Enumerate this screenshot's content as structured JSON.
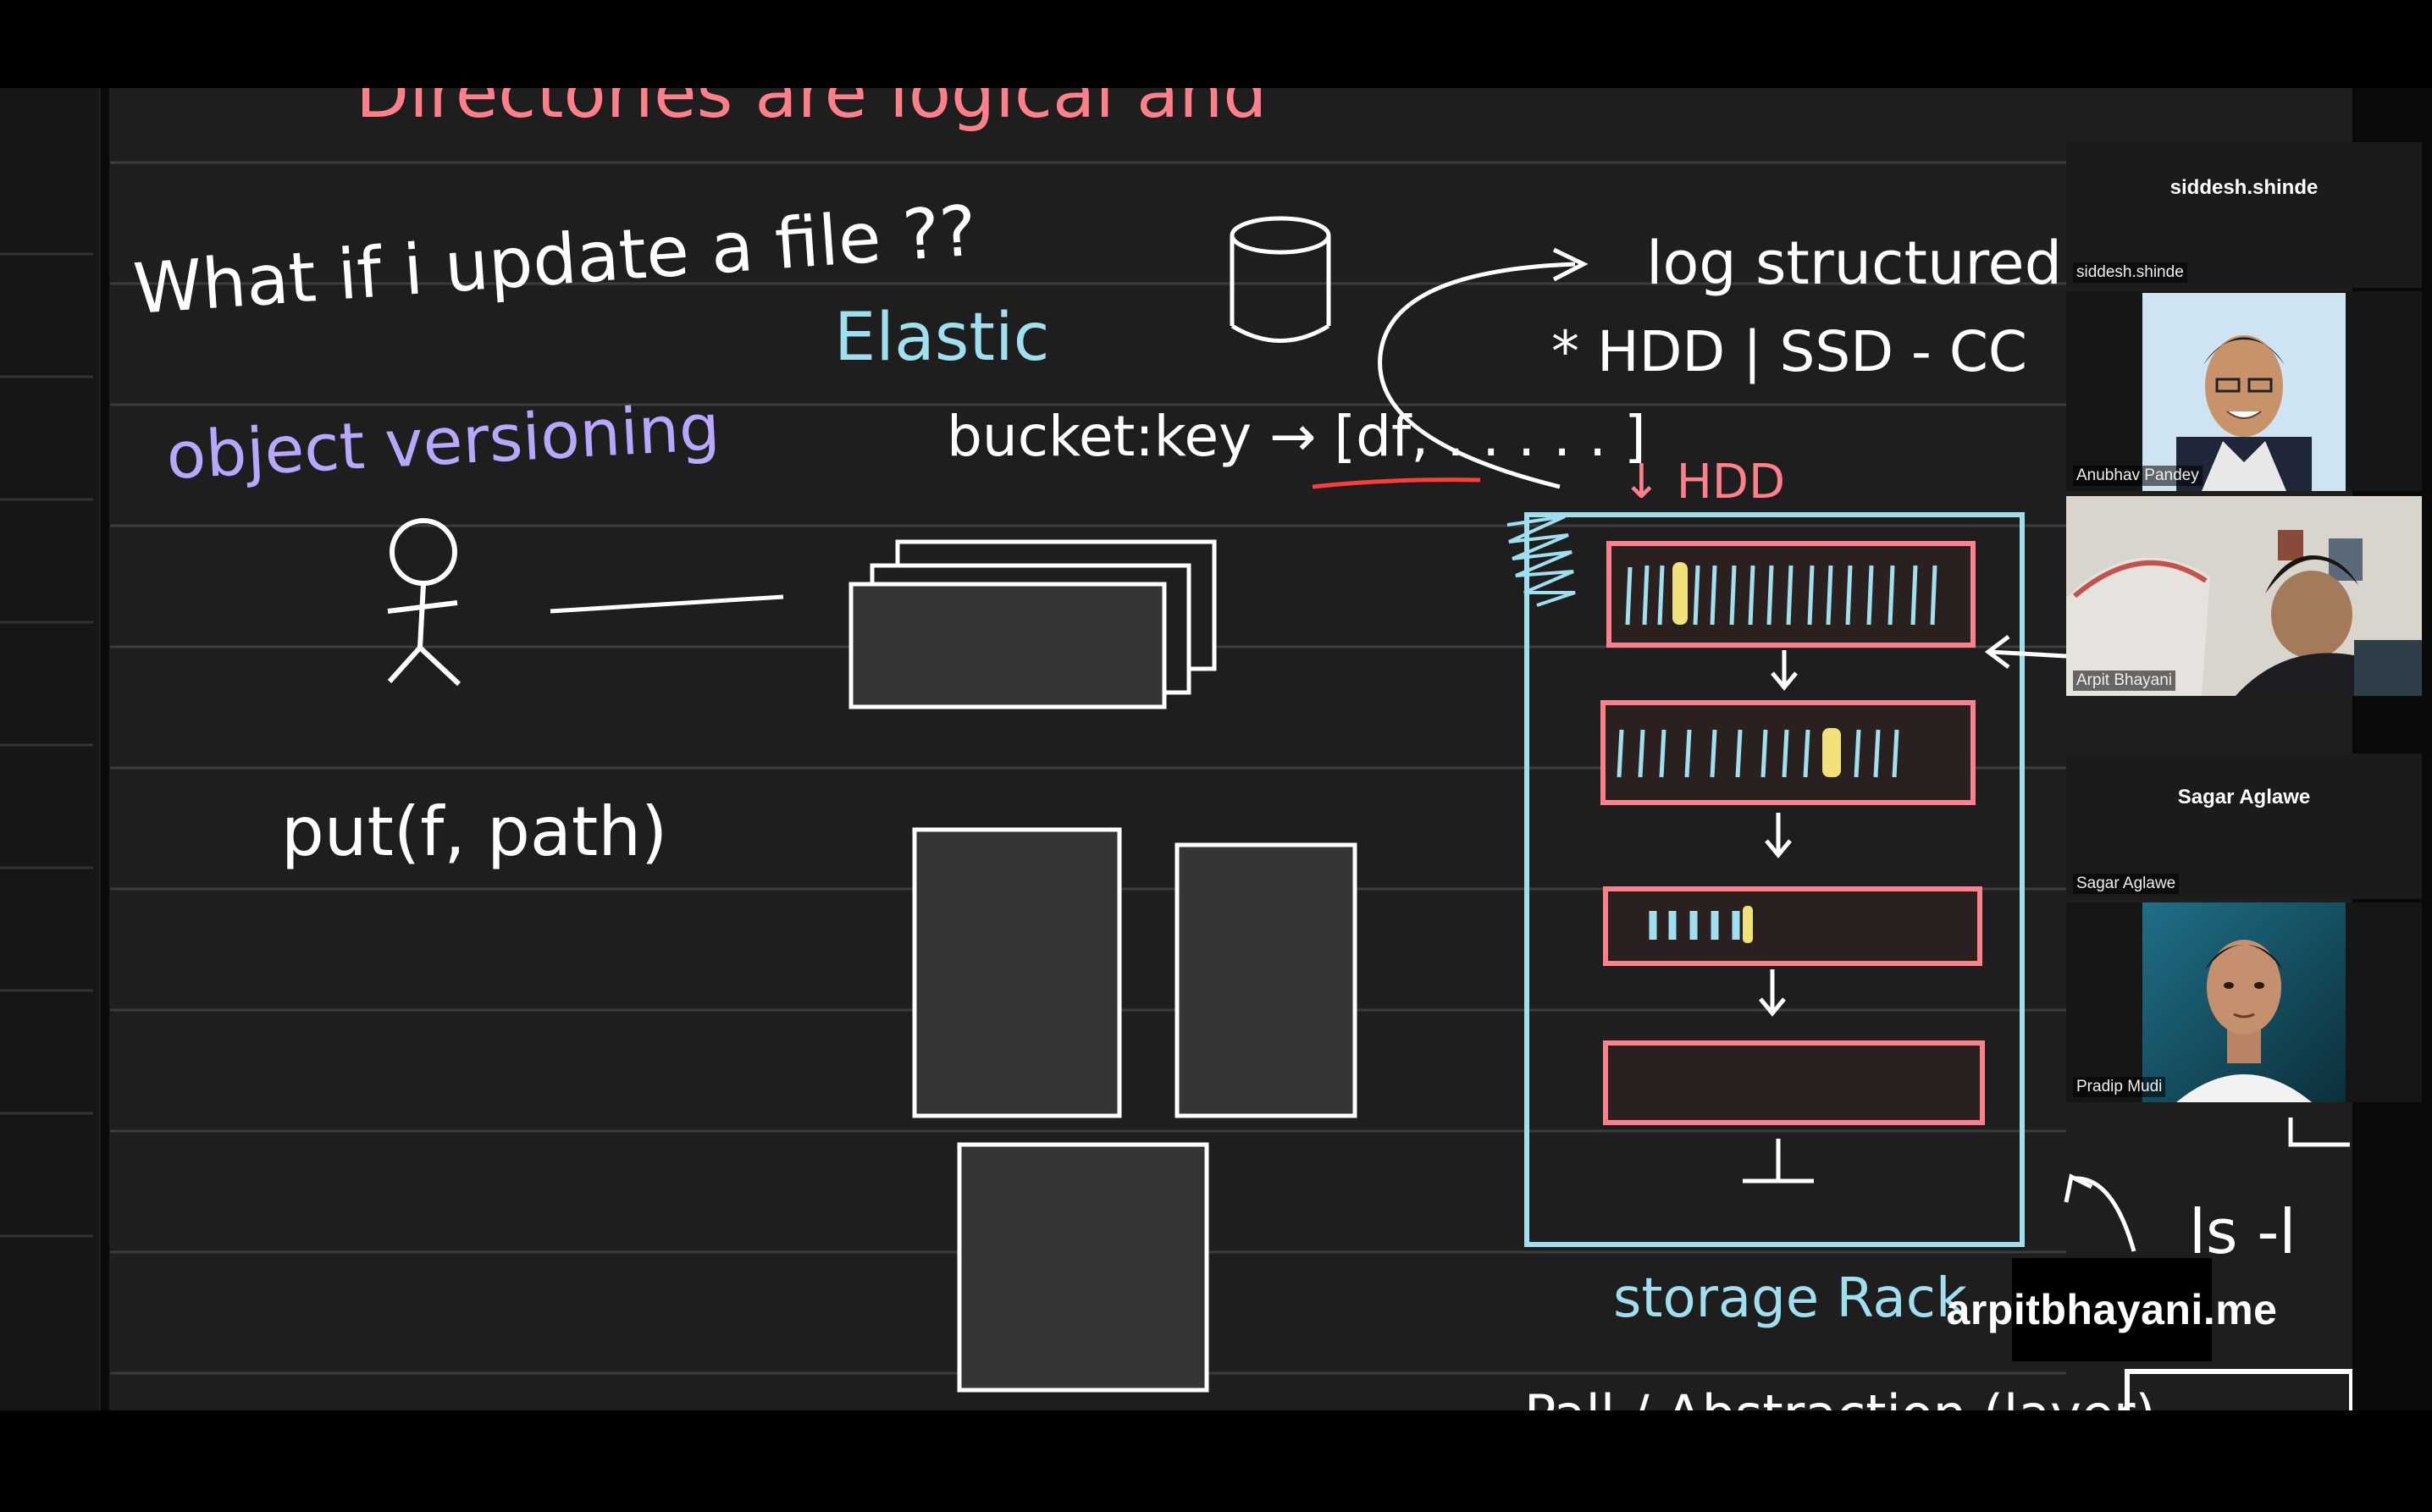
{
  "whiteboard": {
    "top_heading": "Directories are logical and",
    "question": "What if i update a file ??",
    "versioning": "object versioning",
    "elastic": "Elastic",
    "bucket_key": "bucket:key → [df, . . . . . ]",
    "put_call": "put(f, path)",
    "log_structured": "log structured f",
    "hdd_ssd": "* HDD | SSD - CC",
    "hdd": "↓ HDD",
    "storage_rack": "storage Rack",
    "ls_cmd": "ls -l",
    "bottom_text": "Pall / Abstraction (layer)"
  },
  "participants": [
    {
      "tile_name": "siddesh.shinde",
      "label": "siddesh.shinde"
    },
    {
      "label": "Anubhav Pandey"
    },
    {
      "label": "Arpit Bhayani"
    },
    {
      "tile_name": "Sagar Aglawe",
      "label": "Sagar Aglawe"
    },
    {
      "label": "Pradip Mudi"
    }
  ],
  "watermark": "arpitbhayani.me",
  "colors": {
    "board_bg": "#1e1e1e",
    "rule_lines": "#3a3a3a",
    "ink_white": "#ffffff",
    "ink_purple": "#b9a6ff",
    "ink_cyan": "#9fdff0",
    "ink_pink": "#ff7f8a",
    "ink_yellow": "#f2e07a"
  }
}
